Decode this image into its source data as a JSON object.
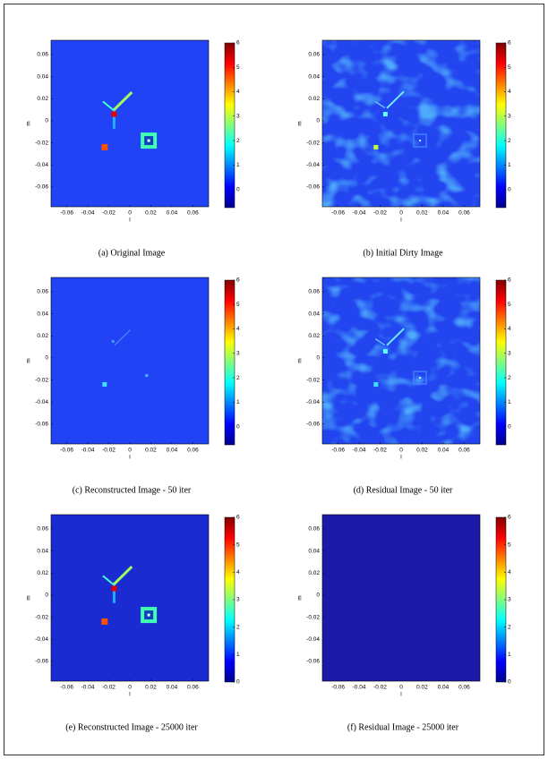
{
  "chart_data": [
    {
      "type": "image",
      "caption": "(a) Original Image",
      "xlabel": "l",
      "ylabel": "m",
      "xlim": [
        -0.075,
        0.075
      ],
      "ylim": [
        -0.078,
        0.073
      ],
      "xticks": [
        -0.06,
        -0.04,
        -0.02,
        0,
        0.02,
        0.04,
        0.06
      ],
      "yticks": [
        0.06,
        0.04,
        0.02,
        0,
        -0.02,
        -0.04,
        -0.06
      ],
      "clim": [
        -0.75,
        6
      ],
      "cticks": [
        0,
        1,
        2,
        3,
        4,
        5,
        6
      ]
    },
    {
      "type": "image",
      "caption": "(b) Initial Dirty Image",
      "xlabel": "l",
      "ylabel": "m",
      "xlim": [
        -0.075,
        0.075
      ],
      "ylim": [
        -0.078,
        0.073
      ],
      "xticks": [
        -0.06,
        -0.04,
        -0.02,
        0,
        0.02,
        0.04,
        0.06
      ],
      "yticks": [
        0.06,
        0.04,
        0.02,
        0,
        -0.02,
        -0.04,
        -0.06
      ],
      "clim": [
        -0.75,
        6
      ],
      "cticks": [
        0,
        1,
        2,
        3,
        4,
        5,
        6
      ]
    },
    {
      "type": "image",
      "caption": "(c) Reconstructed Image - 50 iter",
      "xlabel": "l",
      "ylabel": "m",
      "xlim": [
        -0.075,
        0.075
      ],
      "ylim": [
        -0.078,
        0.073
      ],
      "xticks": [
        -0.06,
        -0.04,
        -0.02,
        0,
        0.02,
        0.04,
        0.06
      ],
      "yticks": [
        0.06,
        0.04,
        0.02,
        0,
        -0.02,
        -0.04,
        -0.06
      ],
      "clim": [
        -0.75,
        6
      ],
      "cticks": [
        0,
        1,
        2,
        3,
        4,
        5,
        6
      ]
    },
    {
      "type": "image",
      "caption": "(d) Residual Image - 50 iter",
      "xlabel": "l",
      "ylabel": "m",
      "xlim": [
        -0.075,
        0.075
      ],
      "ylim": [
        -0.078,
        0.073
      ],
      "xticks": [
        -0.06,
        -0.04,
        -0.02,
        0,
        0.02,
        0.04,
        0.06
      ],
      "yticks": [
        0.06,
        0.04,
        0.02,
        0,
        -0.02,
        -0.04,
        -0.06
      ],
      "clim": [
        -0.75,
        6
      ],
      "cticks": [
        0,
        1,
        2,
        3,
        4,
        5,
        6
      ]
    },
    {
      "type": "image",
      "caption": "(e) Reconstructed Image - 25000 iter",
      "xlabel": "l",
      "ylabel": "m",
      "xlim": [
        -0.075,
        0.075
      ],
      "ylim": [
        -0.078,
        0.073
      ],
      "xticks": [
        -0.06,
        -0.04,
        -0.02,
        0,
        0.02,
        0.04,
        0.06
      ],
      "yticks": [
        0.06,
        0.04,
        0.02,
        0,
        -0.02,
        -0.04,
        -0.06
      ],
      "clim": [
        0,
        6
      ],
      "cticks": [
        0,
        1,
        2,
        3,
        4,
        5,
        6
      ]
    },
    {
      "type": "image",
      "caption": "(f) Residual Image - 25000 iter",
      "xlabel": "l",
      "ylabel": "m",
      "xlim": [
        -0.075,
        0.075
      ],
      "ylim": [
        -0.078,
        0.073
      ],
      "xticks": [
        -0.06,
        -0.04,
        -0.02,
        0,
        0.02,
        0.04,
        0.06
      ],
      "yticks": [
        0.06,
        0.04,
        0.02,
        0,
        -0.02,
        -0.04,
        -0.06
      ],
      "clim": [
        0,
        6
      ],
      "cticks": [
        0,
        1,
        2,
        3,
        4,
        5,
        6
      ]
    }
  ]
}
